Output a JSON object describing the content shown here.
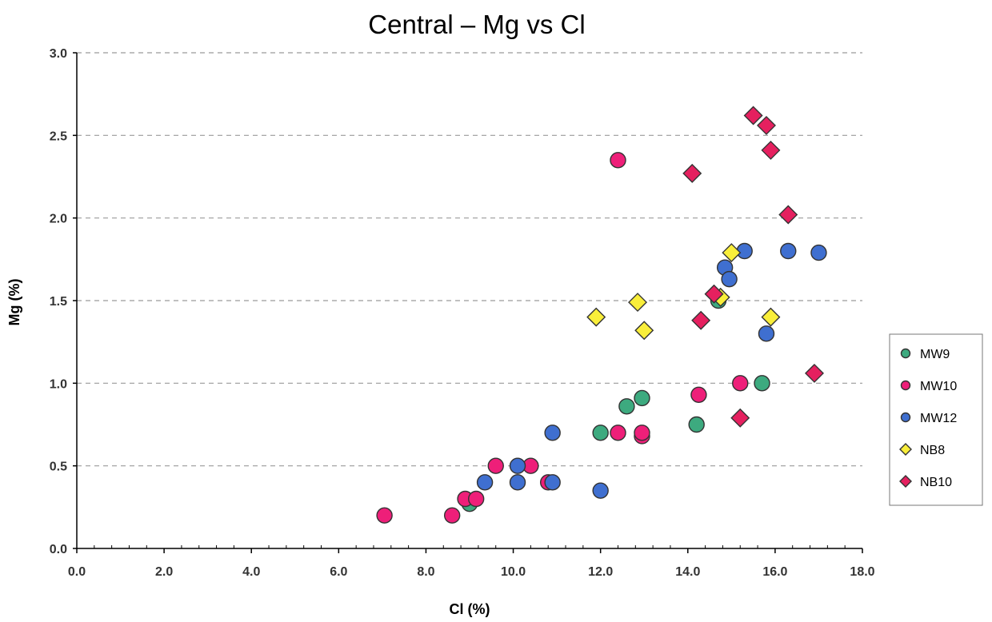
{
  "chart_data": {
    "type": "scatter",
    "title": "Central – Mg vs Cl",
    "xlabel": "Cl (%)",
    "ylabel": "Mg (%)",
    "xlim": [
      0,
      18
    ],
    "ylim": [
      0,
      3
    ],
    "x_ticks": [
      "0.0",
      "2.0",
      "4.0",
      "6.0",
      "8.0",
      "10.0",
      "12.0",
      "14.0",
      "16.0",
      "18.0"
    ],
    "y_ticks": [
      "0.0",
      "0.5",
      "1.0",
      "1.5",
      "2.0",
      "2.5",
      "3.0"
    ],
    "grid": "horizontal dashed",
    "legend_position": "right",
    "series": [
      {
        "name": "MW9",
        "marker": "circle",
        "color": "#3daa7f",
        "points": [
          [
            9.0,
            0.27
          ],
          [
            12.0,
            0.7
          ],
          [
            12.6,
            0.86
          ],
          [
            12.95,
            0.91
          ],
          [
            14.2,
            0.75
          ],
          [
            14.7,
            1.5
          ],
          [
            15.7,
            1.0
          ]
        ]
      },
      {
        "name": "MW10",
        "marker": "circle",
        "color": "#ee1f79",
        "points": [
          [
            7.05,
            0.2
          ],
          [
            8.6,
            0.2
          ],
          [
            8.9,
            0.3
          ],
          [
            9.15,
            0.3
          ],
          [
            9.6,
            0.5
          ],
          [
            10.4,
            0.5
          ],
          [
            10.8,
            0.4
          ],
          [
            12.4,
            2.35
          ],
          [
            12.4,
            0.7
          ],
          [
            12.95,
            0.68
          ],
          [
            12.95,
            0.7
          ],
          [
            14.25,
            0.93
          ],
          [
            15.2,
            1.0
          ]
        ]
      },
      {
        "name": "MW12",
        "marker": "circle",
        "color": "#3f6fd0",
        "points": [
          [
            9.35,
            0.4
          ],
          [
            10.1,
            0.4
          ],
          [
            10.1,
            0.5
          ],
          [
            10.9,
            0.4
          ],
          [
            10.9,
            0.7
          ],
          [
            12.0,
            0.35
          ],
          [
            14.85,
            1.7
          ],
          [
            14.95,
            1.63
          ],
          [
            15.3,
            1.8
          ],
          [
            15.8,
            1.3
          ],
          [
            16.3,
            1.8
          ],
          [
            17.0,
            1.79
          ]
        ]
      },
      {
        "name": "NB8",
        "marker": "diamond",
        "color": "#f9ee3a",
        "points": [
          [
            11.9,
            1.4
          ],
          [
            12.85,
            1.49
          ],
          [
            13.0,
            1.32
          ],
          [
            14.75,
            1.52
          ],
          [
            15.0,
            1.79
          ],
          [
            15.9,
            1.4
          ]
        ]
      },
      {
        "name": "NB10",
        "marker": "diamond",
        "color": "#e5205f",
        "points": [
          [
            14.1,
            2.27
          ],
          [
            14.3,
            1.38
          ],
          [
            14.6,
            1.54
          ],
          [
            15.2,
            0.79
          ],
          [
            15.5,
            2.62
          ],
          [
            15.8,
            2.56
          ],
          [
            15.9,
            2.41
          ],
          [
            16.3,
            2.02
          ],
          [
            16.9,
            1.06
          ]
        ]
      }
    ]
  }
}
